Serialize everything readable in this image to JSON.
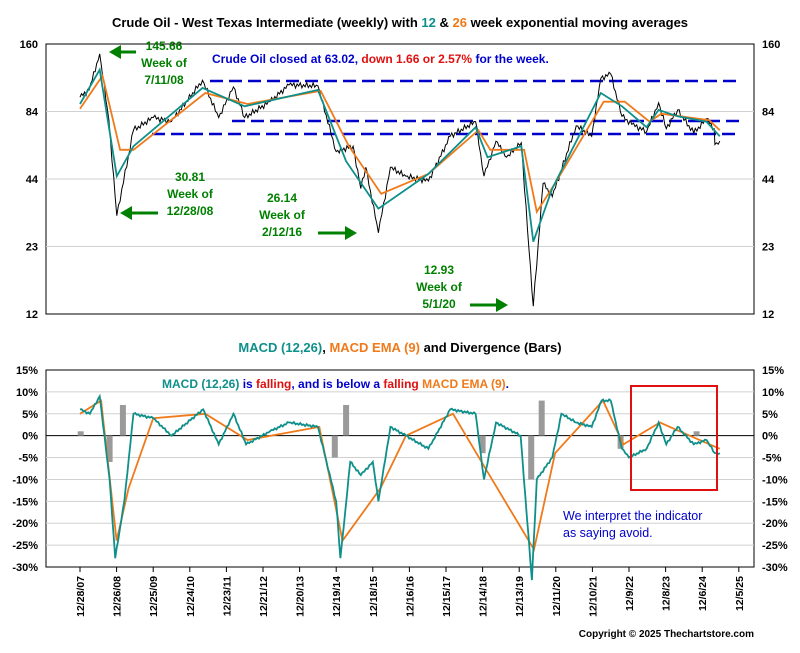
{
  "colors": {
    "price": "#000000",
    "ema12": "#0f8f8a",
    "ema26": "#f07a1a",
    "hist": "#9a9a9a",
    "blue": "#0000cc",
    "red": "#e01010",
    "green": "#008000",
    "box": "#e01010"
  },
  "top_chart": {
    "title_parts": [
      "Crude Oil - West Texas Intermediate (weekly) with ",
      "12",
      " & ",
      "26",
      " week exponential moving averages"
    ],
    "note_parts": [
      "Crude Oil closed at 63.02, ",
      "down 1.66 or 2.57%",
      " for the week."
    ],
    "y_ticks": [
      "160",
      "84",
      "44",
      "23",
      "12"
    ],
    "annotations": [
      {
        "lines": [
          "145.66",
          "Week of",
          "7/11/08"
        ]
      },
      {
        "lines": [
          "30.81",
          "Week of",
          "12/28/08"
        ]
      },
      {
        "lines": [
          "26.14",
          "Week of",
          "2/12/16"
        ]
      },
      {
        "lines": [
          "12.93",
          "Week of",
          "5/1/20"
        ]
      }
    ]
  },
  "bottom_chart": {
    "title_parts": [
      "MACD (12,26)",
      ", ",
      "MACD EMA (9)",
      " and Divergence (Bars)"
    ],
    "note_parts": [
      "MACD (12,26)",
      " is ",
      "falling",
      ", and is below a ",
      "falling",
      " ",
      "MACD EMA (9)",
      "."
    ],
    "y_ticks": [
      "15%",
      "10%",
      "5%",
      "0%",
      "-5%",
      "-10%",
      "-15%",
      "-20%",
      "-25%",
      "-30%"
    ],
    "interpretation": [
      "We interpret the indicator",
      "as saying avoid."
    ]
  },
  "x_ticks": [
    "12/28/07",
    "12/26/08",
    "12/25/09",
    "12/24/10",
    "12/23/11",
    "12/21/12",
    "12/20/13",
    "12/19/14",
    "12/18/15",
    "12/16/16",
    "12/15/17",
    "12/14/18",
    "12/13/19",
    "12/11/20",
    "12/10/21",
    "12/9/22",
    "12/8/23",
    "12/6/24",
    "12/5/25"
  ],
  "copyright": "Copyright © 2025 Thechartstore.com",
  "chart_data": [
    {
      "type": "line",
      "title": "Crude Oil - West Texas Intermediate (weekly) with 12 & 26 week exponential moving averages",
      "y_scale": "log",
      "ylim": [
        12,
        160
      ],
      "series": [
        {
          "name": "Crude Oil",
          "x": [
            "2007-12-28",
            "2008-03-28",
            "2008-07-11",
            "2008-10-10",
            "2008-12-28",
            "2009-06-12",
            "2009-12-25",
            "2010-06-25",
            "2011-04-29",
            "2011-10-07",
            "2012-03-02",
            "2012-06-22",
            "2013-03-01",
            "2013-09-06",
            "2014-06-20",
            "2014-12-19",
            "2015-06-05",
            "2015-08-21",
            "2015-10-09",
            "2016-02-12",
            "2016-06-10",
            "2016-11-11",
            "2017-06-23",
            "2018-01-26",
            "2018-10-05",
            "2018-12-28",
            "2019-04-26",
            "2019-08-09",
            "2020-01-03",
            "2020-03-20",
            "2020-05-01",
            "2020-08-07",
            "2020-11-06",
            "2021-07-02",
            "2021-12-03",
            "2022-03-04",
            "2022-06-10",
            "2022-09-30",
            "2023-01-06",
            "2023-06-02",
            "2023-09-29",
            "2023-12-15",
            "2024-04-05",
            "2024-09-13",
            "2025-01-17",
            "2025-04-04",
            "2025-04-11",
            "2025-05-30"
          ],
          "values": [
            96,
            103,
            145.66,
            77,
            30.81,
            70,
            79,
            76,
            113,
            79,
            106,
            79,
            92,
            108,
            107,
            57,
            60,
            40,
            49,
            26.14,
            49,
            45,
            43,
            66,
            76,
            45,
            63,
            54,
            62,
            22,
            12.93,
            42,
            37,
            73,
            66,
            115,
            120,
            80,
            74,
            69,
            91,
            71,
            85,
            68,
            78,
            71,
            61,
            63.02
          ]
        },
        {
          "name": "12",
          "x": [
            "2007-12-28",
            "2008-07-11",
            "2008-12-28",
            "2009-06-12",
            "2011-04-29",
            "2012-06-22",
            "2014-06-20",
            "2015-03-27",
            "2016-02-12",
            "2017-06-23",
            "2018-10-05",
            "2019-02-01",
            "2020-01-03",
            "2020-05-01",
            "2020-11-06",
            "2022-03-04",
            "2022-09-30",
            "2023-06-02",
            "2023-09-29",
            "2024-04-05",
            "2025-01-17",
            "2025-05-30"
          ],
          "values": [
            90,
            125,
            45,
            60,
            105,
            88,
            103,
            52,
            33,
            46,
            72,
            54,
            60,
            24,
            40,
            100,
            88,
            72,
            85,
            80,
            76,
            66
          ]
        },
        {
          "name": "26",
          "x": [
            "2007-12-28",
            "2008-08-08",
            "2009-01-30",
            "2009-06-12",
            "2011-05-27",
            "2012-07-20",
            "2014-07-18",
            "2015-04-24",
            "2016-03-11",
            "2017-06-23",
            "2018-11-02",
            "2019-03-01",
            "2020-01-31",
            "2020-06-05",
            "2020-12-04",
            "2022-04-01",
            "2022-10-28",
            "2023-06-30",
            "2023-10-27",
            "2024-05-03",
            "2025-02-14",
            "2025-05-30"
          ],
          "values": [
            86,
            118,
            58,
            58,
            100,
            90,
            102,
            60,
            38,
            46,
            70,
            58,
            58,
            32,
            42,
            92,
            92,
            76,
            82,
            80,
            77,
            70
          ]
        }
      ]
    },
    {
      "type": "line",
      "title": "MACD (12,26), MACD EMA (9) and Divergence (Bars)",
      "ylim": [
        -30,
        15
      ],
      "series": [
        {
          "name": "MACD (12,26)",
          "x": [
            "2007-12-28",
            "2008-04-04",
            "2008-07-11",
            "2008-10-17",
            "2008-12-12",
            "2009-03-13",
            "2009-06-12",
            "2009-12-25",
            "2010-06-25",
            "2011-05-06",
            "2011-10-07",
            "2012-03-02",
            "2012-07-06",
            "2013-03-01",
            "2013-09-06",
            "2014-06-20",
            "2014-12-19",
            "2015-01-30",
            "2015-05-08",
            "2015-08-21",
            "2015-12-18",
            "2016-02-12",
            "2016-06-10",
            "2016-11-11",
            "2017-06-23",
            "2018-01-26",
            "2018-10-05",
            "2018-12-28",
            "2019-04-26",
            "2019-12-27",
            "2020-04-17",
            "2020-06-05",
            "2020-11-06",
            "2021-02-05",
            "2021-07-02",
            "2021-12-03",
            "2022-03-11",
            "2022-06-10",
            "2022-09-30",
            "2022-12-09",
            "2023-06-02",
            "2023-09-29",
            "2023-12-15",
            "2024-04-05",
            "2024-09-13",
            "2025-01-17",
            "2025-04-11",
            "2025-05-30"
          ],
          "values": [
            6,
            5,
            9,
            -10,
            -28,
            -15,
            5,
            4,
            0,
            6,
            -2,
            5,
            -2,
            1,
            3,
            2,
            -15,
            -28,
            -6,
            -9,
            -6,
            -15,
            2,
            0,
            -3,
            6,
            5,
            -10,
            3,
            0,
            -33,
            -10,
            -5,
            5,
            3,
            2,
            8,
            8,
            -3,
            -5,
            -3,
            3,
            -2,
            2,
            -2,
            -1,
            -4,
            -4
          ]
        },
        {
          "name": "MACD EMA (9)",
          "x": [
            "2007-12-28",
            "2008-07-25",
            "2008-12-26",
            "2009-04-24",
            "2009-12-25",
            "2011-05-27",
            "2012-07-20",
            "2014-07-04",
            "2015-02-20",
            "2016-03-04",
            "2016-11-11",
            "2018-02-23",
            "2019-01-25",
            "2020-05-08",
            "2020-12-04",
            "2022-03-25",
            "2022-10-14",
            "2023-10-13",
            "2024-04-26",
            "2025-05-30"
          ],
          "values": [
            5,
            8,
            -24,
            -12,
            4,
            5,
            -1,
            2,
            -24,
            -12,
            0,
            5,
            -8,
            -26,
            -4,
            8,
            -2,
            3,
            1,
            -3
          ]
        },
        {
          "name": "Divergence (Bars)",
          "x": [
            "2008-01-04",
            "2008-10-17",
            "2009-02-27",
            "2014-12-05",
            "2015-03-27",
            "2018-12-14",
            "2020-04-10",
            "2020-07-24",
            "2022-09-16",
            "2024-10-11"
          ],
          "values": [
            1,
            -6,
            7,
            -5,
            7,
            -4,
            -10,
            8,
            -3,
            1
          ]
        }
      ]
    }
  ]
}
